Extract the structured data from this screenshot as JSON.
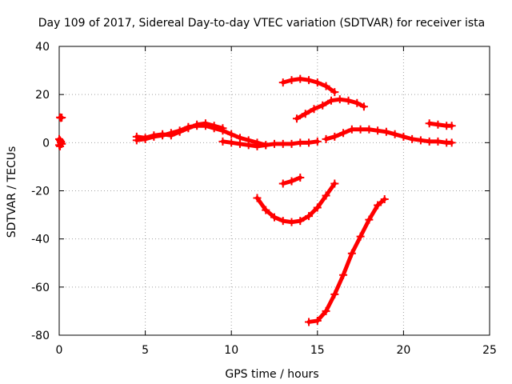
{
  "chart_data": {
    "type": "scatter",
    "title": "Day 109 of 2017, Sidereal Day-to-day VTEC variation (SDTVAR) for receiver ista",
    "xlabel": "GPS time / hours",
    "ylabel": "SDTVAR / TECUs",
    "xlim": [
      0,
      25
    ],
    "ylim": [
      -80,
      40
    ],
    "xticks": [
      0,
      5,
      10,
      15,
      20,
      25
    ],
    "yticks": [
      -80,
      -60,
      -40,
      -20,
      0,
      20,
      40
    ],
    "grid": true,
    "marker": "plus",
    "series_color": "#ff0000",
    "series": [
      {
        "x": [
          0.05,
          0.1,
          0.15
        ],
        "y": [
          10.5,
          10.3,
          10.4
        ]
      },
      {
        "x": [
          0.0,
          0.05,
          0.1,
          0.15,
          0.0,
          0.05,
          0.1
        ],
        "y": [
          1.5,
          1.0,
          0.5,
          -0.5,
          -1.0,
          -1.5,
          0.0
        ]
      },
      {
        "x": [
          4.5,
          5.0,
          5.5,
          6.0,
          6.5,
          7.0,
          7.5,
          8.0,
          8.5,
          9.0,
          9.5,
          10.0,
          10.5,
          11.0,
          11.5,
          12.0
        ],
        "y": [
          1.0,
          1.5,
          2.5,
          3.0,
          4.0,
          5.0,
          6.5,
          7.0,
          7.0,
          6.0,
          5.0,
          3.5,
          2.0,
          1.0,
          0.0,
          -1.0
        ]
      },
      {
        "x": [
          4.5,
          5.0,
          5.5,
          6.0,
          6.5,
          7.0,
          7.5,
          8.0,
          8.5,
          9.0,
          9.5
        ],
        "y": [
          2.5,
          2.0,
          3.0,
          3.5,
          3.0,
          4.5,
          6.0,
          7.5,
          8.0,
          7.0,
          6.0
        ]
      },
      {
        "x": [
          9.5,
          10.0,
          10.5,
          11.0,
          11.5,
          12.0,
          12.5,
          13.0,
          13.5,
          14.0,
          14.5,
          15.0
        ],
        "y": [
          0.5,
          0.0,
          -0.5,
          -1.0,
          -1.5,
          -1.0,
          -0.5,
          -0.5,
          -0.5,
          0.0,
          0.0,
          0.5
        ]
      },
      {
        "x": [
          13.0,
          13.5,
          14.0,
          14.5,
          15.0,
          15.5,
          16.0
        ],
        "y": [
          25.0,
          26.0,
          26.5,
          26.0,
          25.0,
          23.5,
          21.0
        ]
      },
      {
        "x": [
          13.8,
          14.3,
          14.8,
          15.3,
          15.8,
          16.3,
          16.8,
          17.3,
          17.7
        ],
        "y": [
          10.0,
          12.0,
          14.0,
          15.5,
          17.5,
          18.0,
          17.5,
          16.5,
          15.0
        ]
      },
      {
        "x": [
          15.5,
          16.0,
          16.5,
          17.0,
          17.5,
          18.0,
          18.5,
          19.0,
          19.5,
          20.0,
          20.5,
          21.0,
          21.5,
          22.0,
          22.5,
          22.8
        ],
        "y": [
          1.5,
          2.5,
          4.0,
          5.5,
          5.5,
          5.5,
          5.0,
          4.5,
          3.5,
          2.5,
          1.5,
          1.0,
          0.5,
          0.5,
          0.0,
          0.0
        ]
      },
      {
        "x": [
          21.5,
          22.0,
          22.5,
          22.8
        ],
        "y": [
          8.0,
          7.5,
          7.0,
          7.0
        ]
      },
      {
        "x": [
          13.0,
          13.5,
          14.0
        ],
        "y": [
          -17.0,
          -16.0,
          -14.5
        ]
      },
      {
        "x": [
          11.5,
          12.0,
          12.5,
          13.0,
          13.5,
          14.0,
          14.5,
          15.0,
          15.5,
          16.0
        ],
        "y": [
          -23.0,
          -28.0,
          -31.0,
          -32.5,
          -33.0,
          -32.5,
          -30.5,
          -27.0,
          -22.0,
          -17.0
        ]
      },
      {
        "x": [
          14.5,
          15.0,
          15.5,
          16.0,
          16.5,
          17.0,
          17.5,
          18.0,
          18.5,
          18.9
        ],
        "y": [
          -74.5,
          -74.0,
          -70.0,
          -63.0,
          -55.0,
          -46.0,
          -39.0,
          -32.0,
          -26.0,
          -23.5
        ]
      }
    ]
  }
}
